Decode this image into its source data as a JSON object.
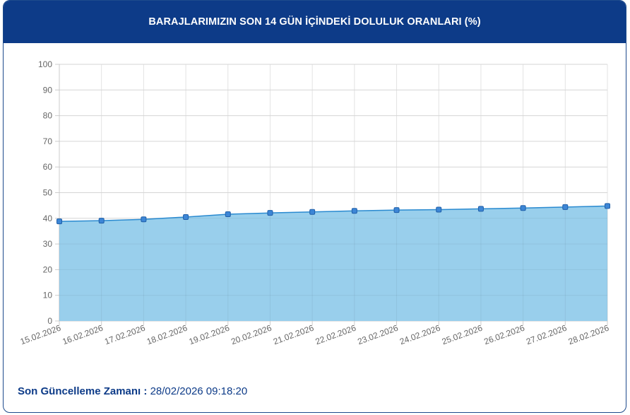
{
  "header": {
    "title": "BARAJLARIMIZIN SON 14 GÜN İÇİNDEKİ DOLULUK ORANLARI (%)"
  },
  "footer": {
    "label": "Son Güncelleme Zamanı :",
    "value": "28/02/2026 09:18:20"
  },
  "colors": {
    "header_bg": "#0d3b88",
    "area_fill": "#99cfec",
    "line": "#2a8ad0",
    "point_fill": "#3d86d6",
    "point_stroke": "#1f5fa8"
  },
  "chart_data": {
    "type": "area",
    "title": "BARAJLARIMIZIN SON 14 GÜN İÇİNDEKİ DOLULUK ORANLARI (%)",
    "xlabel": "",
    "ylabel": "",
    "ylim": [
      0,
      100
    ],
    "yticks": [
      0,
      10,
      20,
      30,
      40,
      50,
      60,
      70,
      80,
      90,
      100
    ],
    "grid": true,
    "legend": "none",
    "categories": [
      "15.02.2026",
      "16.02.2026",
      "17.02.2026",
      "18.02.2026",
      "19.02.2026",
      "20.02.2026",
      "21.02.2026",
      "22.02.2026",
      "23.02.2026",
      "24.02.2026",
      "25.02.2026",
      "26.02.2026",
      "27.02.2026",
      "28.02.2026"
    ],
    "series": [
      {
        "values": [
          38.8,
          39.1,
          39.6,
          40.5,
          41.6,
          42.1,
          42.5,
          42.9,
          43.2,
          43.4,
          43.7,
          44.0,
          44.4,
          44.8
        ]
      }
    ]
  }
}
